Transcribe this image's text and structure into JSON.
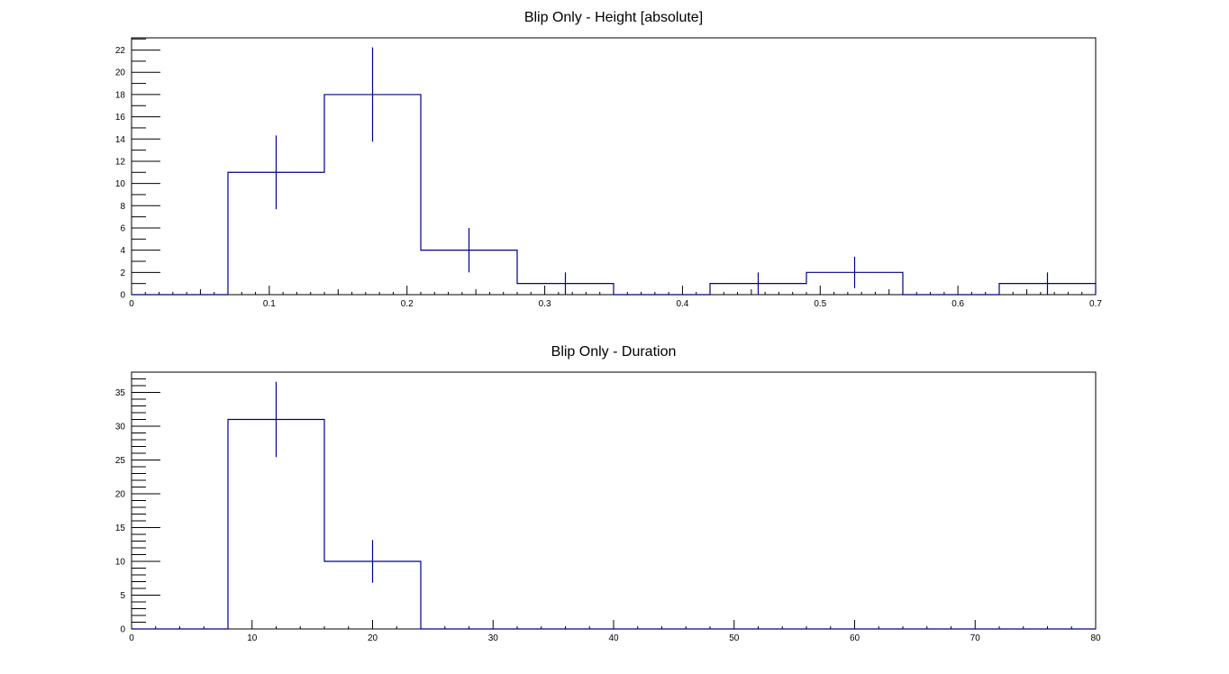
{
  "chart_data": [
    {
      "type": "histogram",
      "title": "Blip Only - Height [absolute]",
      "xlabel": "",
      "ylabel": "",
      "bin_edges": [
        0,
        0.07,
        0.14,
        0.21,
        0.28,
        0.35,
        0.42,
        0.49,
        0.56,
        0.63,
        0.7
      ],
      "values": [
        0,
        11,
        18,
        4,
        1,
        0,
        1,
        2,
        0,
        1
      ],
      "errors": [
        0,
        3.317,
        4.243,
        2,
        1,
        0,
        1,
        1.414,
        0,
        1
      ],
      "xlim": [
        0,
        0.7
      ],
      "ylim": [
        0,
        23.1
      ],
      "x_ticks": [
        0,
        0.1,
        0.2,
        0.3,
        0.4,
        0.5,
        0.6,
        0.7
      ],
      "x_tick_labels": [
        "0",
        "0.1",
        "0.2",
        "0.3",
        "0.4",
        "0.5",
        "0.6",
        "0.7"
      ],
      "y_ticks": [
        0,
        2,
        4,
        6,
        8,
        10,
        12,
        14,
        16,
        18,
        20,
        22
      ],
      "y_tick_labels": [
        "0",
        "2",
        "4",
        "6",
        "8",
        "10",
        "12",
        "14",
        "16",
        "18",
        "20",
        "22"
      ],
      "x_minor_step": 0.01,
      "y_minor_step": 1,
      "grid": false,
      "line_color": "#00008b"
    },
    {
      "type": "histogram",
      "title": "Blip Only - Duration",
      "xlabel": "",
      "ylabel": "",
      "bin_edges": [
        0,
        8,
        16,
        24,
        32,
        40,
        48,
        56,
        64,
        72,
        80
      ],
      "values": [
        0,
        31,
        10,
        0,
        0,
        0,
        0,
        0,
        0,
        0
      ],
      "errors": [
        0,
        5.568,
        3.162,
        0,
        0,
        0,
        0,
        0,
        0,
        0
      ],
      "xlim": [
        0,
        80
      ],
      "ylim": [
        0,
        38
      ],
      "x_ticks": [
        0,
        10,
        20,
        30,
        40,
        50,
        60,
        70,
        80
      ],
      "x_tick_labels": [
        "0",
        "10",
        "20",
        "30",
        "40",
        "50",
        "60",
        "70",
        "80"
      ],
      "y_ticks": [
        0,
        5,
        10,
        15,
        20,
        25,
        30,
        35
      ],
      "y_tick_labels": [
        "0",
        "5",
        "10",
        "15",
        "20",
        "25",
        "30",
        "35"
      ],
      "x_minor_step": 2,
      "y_minor_step": 1,
      "grid": false,
      "line_color": "#00008b"
    }
  ]
}
